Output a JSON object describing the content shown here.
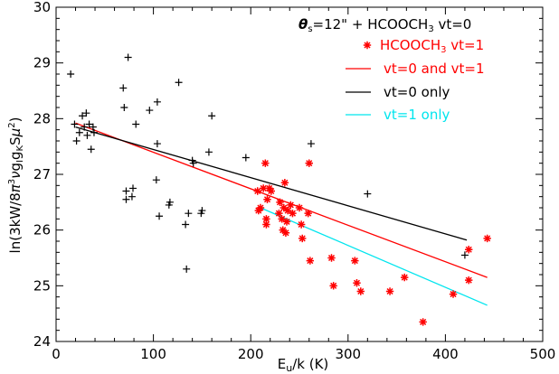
{
  "chart_data": {
    "type": "scatter",
    "title": "",
    "xlabel": "E_u/k (K)",
    "ylabel": "ln(3kW/8π³νg_I g_K Sμ²)",
    "xlim": [
      0,
      500
    ],
    "ylim": [
      24,
      30
    ],
    "xticks": [
      "0",
      "100",
      "200",
      "300",
      "400",
      "500"
    ],
    "yticks": [
      "24",
      "25",
      "26",
      "27",
      "28",
      "29",
      "30"
    ],
    "legend_header": "θs=12\" + HCOOCH₃ vt=0",
    "legend_placement": "top-right",
    "series": [
      {
        "name": "HCOOCH₃ vt=0",
        "marker": "+",
        "color": "#000000",
        "points": [
          [
            15,
            28.8
          ],
          [
            19,
            27.9
          ],
          [
            21,
            27.6
          ],
          [
            24,
            27.75
          ],
          [
            27,
            28.05
          ],
          [
            29,
            27.85
          ],
          [
            31,
            28.1
          ],
          [
            32,
            27.7
          ],
          [
            34,
            27.9
          ],
          [
            36,
            27.45
          ],
          [
            38,
            27.85
          ],
          [
            39,
            27.75
          ],
          [
            69,
            28.55
          ],
          [
            70,
            28.2
          ],
          [
            72,
            26.7
          ],
          [
            72,
            26.55
          ],
          [
            74,
            29.1
          ],
          [
            78,
            26.6
          ],
          [
            79,
            26.75
          ],
          [
            82,
            27.9
          ],
          [
            96,
            28.15
          ],
          [
            103,
            26.9
          ],
          [
            104,
            28.3
          ],
          [
            104,
            27.55
          ],
          [
            106,
            26.25
          ],
          [
            116,
            26.45
          ],
          [
            117,
            26.5
          ],
          [
            126,
            28.65
          ],
          [
            133,
            26.1
          ],
          [
            134,
            25.3
          ],
          [
            136,
            26.3
          ],
          [
            140,
            27.25
          ],
          [
            141,
            27.2
          ],
          [
            149,
            26.3
          ],
          [
            150,
            26.35
          ],
          [
            157,
            27.4
          ],
          [
            160,
            28.05
          ],
          [
            195,
            27.3
          ],
          [
            260,
            27.2
          ],
          [
            262,
            27.55
          ],
          [
            320,
            26.65
          ],
          [
            420,
            25.55
          ]
        ]
      },
      {
        "name": "HCOOCH₃ vt=1",
        "marker": "*",
        "color": "#ff0000",
        "points": [
          [
            207,
            26.7
          ],
          [
            208,
            26.35
          ],
          [
            210,
            26.4
          ],
          [
            213,
            26.75
          ],
          [
            215,
            27.2
          ],
          [
            216,
            26.2
          ],
          [
            216,
            26.1
          ],
          [
            217,
            26.55
          ],
          [
            219,
            26.75
          ],
          [
            221,
            26.7
          ],
          [
            229,
            26.3
          ],
          [
            230,
            26.5
          ],
          [
            232,
            26.2
          ],
          [
            233,
            26.0
          ],
          [
            234,
            26.4
          ],
          [
            235,
            26.85
          ],
          [
            236,
            25.95
          ],
          [
            237,
            26.15
          ],
          [
            238,
            26.35
          ],
          [
            241,
            26.45
          ],
          [
            243,
            26.3
          ],
          [
            250,
            26.4
          ],
          [
            252,
            26.1
          ],
          [
            253,
            25.85
          ],
          [
            259,
            26.3
          ],
          [
            260,
            27.2
          ],
          [
            261,
            25.45
          ],
          [
            283,
            25.5
          ],
          [
            285,
            25.0
          ],
          [
            307,
            25.45
          ],
          [
            309,
            25.05
          ],
          [
            313,
            24.9
          ],
          [
            343,
            24.9
          ],
          [
            358,
            25.15
          ],
          [
            377,
            24.35
          ],
          [
            408,
            24.85
          ],
          [
            424,
            25.65
          ],
          [
            424,
            25.1
          ],
          [
            443,
            25.85
          ]
        ]
      }
    ],
    "fits": [
      {
        "name": "vt=0 and vt=1",
        "color": "#ff0000",
        "x": [
          20,
          443
        ],
        "y": [
          27.92,
          25.15
        ]
      },
      {
        "name": "vt=0 only",
        "color": "#000000",
        "x": [
          20,
          422
        ],
        "y": [
          27.85,
          25.82
        ]
      },
      {
        "name": "vt=1 only",
        "color": "#00e5ee",
        "x": [
          210,
          443
        ],
        "y": [
          26.4,
          24.65
        ]
      }
    ]
  }
}
